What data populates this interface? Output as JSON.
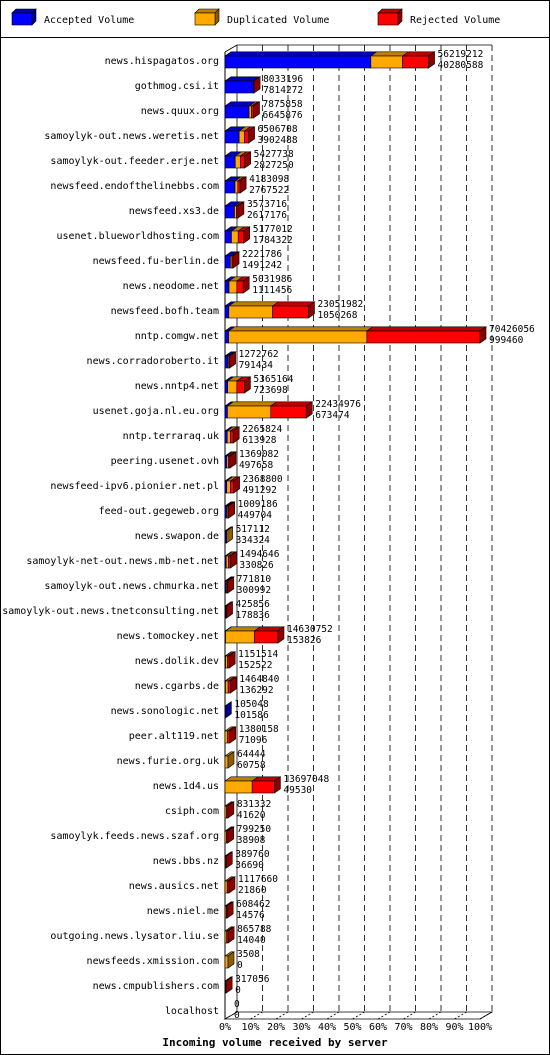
{
  "chart_data": {
    "type": "bar",
    "stacked": true,
    "orientation": "horizontal",
    "xlabel": "Incoming volume received by server",
    "x_ticks": [
      "0%",
      "10%",
      "20%",
      "30%",
      "40%",
      "50%",
      "60%",
      "70%",
      "80%",
      "90%",
      "100%"
    ],
    "x_range": [
      0,
      100
    ],
    "series": [
      {
        "name": "Accepted Volume",
        "color": "#0000ff"
      },
      {
        "name": "Duplicated Volume",
        "color": "#ffaa00"
      },
      {
        "name": "Rejected Volume",
        "color": "#ff0000"
      }
    ],
    "rows": [
      {
        "server": "news.hispagatos.org",
        "total": "56219212",
        "accepted": "40280588",
        "dup": 0,
        "rej": 0
      },
      {
        "server": "gothmog.csi.it",
        "total": "8033196",
        "accepted": "7814272",
        "dup": 0,
        "rej": 0
      },
      {
        "server": "news.quux.org",
        "total": "7875858",
        "accepted": "6645876",
        "dup": 0,
        "rej": 0
      },
      {
        "server": "samoylyk-out.news.weretis.net",
        "total": "6506708",
        "accepted": "3902488",
        "dup": 0,
        "rej": 0
      },
      {
        "server": "samoylyk-out.feeder.erje.net",
        "total": "5427738",
        "accepted": "2827250",
        "dup": 0,
        "rej": 0
      },
      {
        "server": "newsfeed.endofthelinebbs.com",
        "total": "4183098",
        "accepted": "2767522",
        "dup": 0,
        "rej": 0
      },
      {
        "server": "newsfeed.xs3.de",
        "total": "3573716",
        "accepted": "2617176",
        "dup": 0,
        "rej": 0
      },
      {
        "server": "usenet.blueworldhosting.com",
        "total": "5177012",
        "accepted": "1784322",
        "dup": 0,
        "rej": 0
      },
      {
        "server": "newsfeed.fu-berlin.de",
        "total": "2221786",
        "accepted": "1491242",
        "dup": 0,
        "rej": 0
      },
      {
        "server": "news.neodome.net",
        "total": "5031986",
        "accepted": "1111456",
        "dup": 0,
        "rej": 0
      },
      {
        "server": "newsfeed.bofh.team",
        "total": "23051982",
        "accepted": "1050268",
        "dup": 0,
        "rej": 0
      },
      {
        "server": "nntp.comgw.net",
        "total": "70426056",
        "accepted": "999460",
        "dup": 0,
        "rej": 0
      },
      {
        "server": "news.corradoroberto.it",
        "total": "1272762",
        "accepted": "791434",
        "dup": 0,
        "rej": 0
      },
      {
        "server": "news.nntp4.net",
        "total": "5365164",
        "accepted": "723698",
        "dup": 0,
        "rej": 0
      },
      {
        "server": "usenet.goja.nl.eu.org",
        "total": "22434976",
        "accepted": "673474",
        "dup": 0,
        "rej": 0
      },
      {
        "server": "nntp.terraraq.uk",
        "total": "2265824",
        "accepted": "613928",
        "dup": 0,
        "rej": 0
      },
      {
        "server": "peering.usenet.ovh",
        "total": "1369082",
        "accepted": "497658",
        "dup": 0,
        "rej": 0
      },
      {
        "server": "newsfeed-ipv6.pionier.net.pl",
        "total": "2368800",
        "accepted": "491292",
        "dup": 0,
        "rej": 0
      },
      {
        "server": "feed-out.gegeweb.org",
        "total": "1009186",
        "accepted": "449704",
        "dup": 0,
        "rej": 0
      },
      {
        "server": "news.swapon.de",
        "total": "517112",
        "accepted": "334324",
        "dup": 0,
        "rej": 0
      },
      {
        "server": "samoylyk-net-out.news.mb-net.net",
        "total": "1494646",
        "accepted": "330826",
        "dup": 0,
        "rej": 0
      },
      {
        "server": "samoylyk-out.news.chmurka.net",
        "total": "771810",
        "accepted": "300992",
        "dup": 0,
        "rej": 0
      },
      {
        "server": "samoylyk-out.news.tnetconsulting.net",
        "total": "425856",
        "accepted": "178836",
        "dup": 0,
        "rej": 0
      },
      {
        "server": "news.tomockey.net",
        "total": "14630752",
        "accepted": "153826",
        "dup": 0,
        "rej": 0
      },
      {
        "server": "news.dolik.dev",
        "total": "1151514",
        "accepted": "152522",
        "dup": 0,
        "rej": 0
      },
      {
        "server": "news.cgarbs.de",
        "total": "1464840",
        "accepted": "136292",
        "dup": 0,
        "rej": 0
      },
      {
        "server": "news.sonologic.net",
        "total": "105048",
        "accepted": "101586",
        "dup": 0,
        "rej": 0
      },
      {
        "server": "peer.alt119.net",
        "total": "1380158",
        "accepted": "71096",
        "dup": 0,
        "rej": 0
      },
      {
        "server": "news.furie.org.uk",
        "total": "64444",
        "accepted": "60758",
        "dup": 0,
        "rej": 0
      },
      {
        "server": "news.1d4.us",
        "total": "13697048",
        "accepted": "49530",
        "dup": 0,
        "rej": 0
      },
      {
        "server": "csiph.com",
        "total": "831332",
        "accepted": "41620",
        "dup": 0,
        "rej": 0
      },
      {
        "server": "samoylyk.feeds.news.szaf.org",
        "total": "799250",
        "accepted": "38908",
        "dup": 0,
        "rej": 0
      },
      {
        "server": "news.bbs.nz",
        "total": "389760",
        "accepted": "36690",
        "dup": 0,
        "rej": 0
      },
      {
        "server": "news.ausics.net",
        "total": "1117660",
        "accepted": "21860",
        "dup": 0,
        "rej": 0
      },
      {
        "server": "news.niel.me",
        "total": "608462",
        "accepted": "14576",
        "dup": 0,
        "rej": 0
      },
      {
        "server": "outgoing.news.lysator.liu.se",
        "total": "865788",
        "accepted": "14040",
        "dup": 0,
        "rej": 0
      },
      {
        "server": "newsfeeds.xmission.com",
        "total": "3508",
        "accepted": "0",
        "dup": 0,
        "rej": 0
      },
      {
        "server": "news.cmpublishers.com",
        "total": "317056",
        "accepted": "0",
        "dup": 0,
        "rej": 0
      },
      {
        "server": "localhost",
        "total": "0",
        "accepted": "0",
        "dup": 0,
        "rej": 0
      }
    ]
  }
}
